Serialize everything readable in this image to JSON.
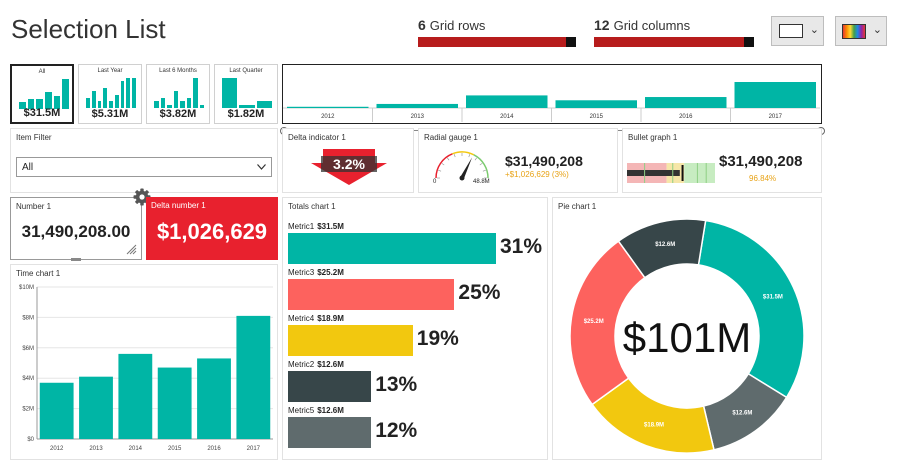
{
  "page_title": "Selection List",
  "grid": {
    "rows_value": "6",
    "rows_label": "Grid rows",
    "cols_value": "12",
    "cols_label": "Grid columns"
  },
  "selection_tiles": [
    {
      "label": "All",
      "value": "$31.5M",
      "bars": [
        2,
        3,
        3,
        5,
        4,
        9
      ]
    },
    {
      "label": "Last Year",
      "value": "$5.31M",
      "bars": [
        3,
        5,
        2,
        6,
        2,
        4,
        8,
        9,
        9
      ]
    },
    {
      "label": "Last 6 Months",
      "value": "$3.82M",
      "bars": [
        2,
        3,
        1,
        5,
        2,
        3,
        9,
        1
      ]
    },
    {
      "label": "Last Quarter",
      "value": "$1.82M",
      "bars": [
        9,
        1,
        2
      ]
    }
  ],
  "timeline": {
    "years": [
      "2012",
      "2013",
      "2014",
      "2015",
      "2016",
      "2017"
    ],
    "values": [
      0.3,
      1.0,
      3.1,
      1.9,
      2.7,
      6.4
    ]
  },
  "item_filter": {
    "title": "Item Filter",
    "value": "All"
  },
  "delta_indicator": {
    "title": "Delta indicator 1",
    "value": "3.2%"
  },
  "radial_gauge": {
    "title": "Radial gauge 1",
    "min": "0",
    "max": "48.8M",
    "value": "$31,490,208",
    "sub": "+$1,026,629 (3%)",
    "fraction": 0.645
  },
  "bullet_graph": {
    "title": "Bullet graph 1",
    "value": "$31,490,208",
    "sub": "96.84%",
    "fraction": 0.6
  },
  "number_tile": {
    "title": "Number 1",
    "value": "31,490,208.00"
  },
  "delta_number": {
    "title": "Delta number 1",
    "value": "$1,026,629"
  },
  "time_chart": {
    "title": "Time chart 1"
  },
  "totals_chart": {
    "title": "Totals chart 1",
    "items": [
      {
        "name": "Metric1",
        "amount": "$31.5M",
        "pct": "31%",
        "value": 31.5,
        "color": "#00b5a5"
      },
      {
        "name": "Metric3",
        "amount": "$25.2M",
        "pct": "25%",
        "value": 25.2,
        "color": "#fd625e"
      },
      {
        "name": "Metric4",
        "amount": "$18.9M",
        "pct": "19%",
        "value": 18.9,
        "color": "#f2c80f"
      },
      {
        "name": "Metric2",
        "amount": "$12.6M",
        "pct": "13%",
        "value": 12.6,
        "color": "#374649"
      },
      {
        "name": "Metric5",
        "amount": "$12.6M",
        "pct": "12%",
        "value": 12.6,
        "color": "#5f6b6d"
      }
    ]
  },
  "pie_chart": {
    "title": "Pie chart 1",
    "center_label": "$101M"
  },
  "chart_data": [
    {
      "type": "bar",
      "title": "Time chart 1",
      "categories": [
        "2012",
        "2013",
        "2014",
        "2015",
        "2016",
        "2017"
      ],
      "values": [
        3.7,
        4.1,
        5.6,
        4.7,
        5.3,
        8.1
      ],
      "ylim": [
        0,
        10
      ],
      "yticks": [
        "$0",
        "$2M",
        "$4M",
        "$6M",
        "$8M",
        "$10M"
      ],
      "color": "#00b5a5"
    },
    {
      "type": "pie",
      "title": "Pie chart 1",
      "center_label": "$101M",
      "slices": [
        {
          "label": "$31.5M",
          "value": 31.5,
          "color": "#00b5a5"
        },
        {
          "label": "$12.6M",
          "value": 12.6,
          "color": "#5f6b6d"
        },
        {
          "label": "$18.9M",
          "value": 18.9,
          "color": "#f2c80f"
        },
        {
          "label": "$25.2M",
          "value": 25.2,
          "color": "#fd625e"
        },
        {
          "label": "$12.6M",
          "value": 12.6,
          "color": "#374649"
        }
      ]
    }
  ]
}
